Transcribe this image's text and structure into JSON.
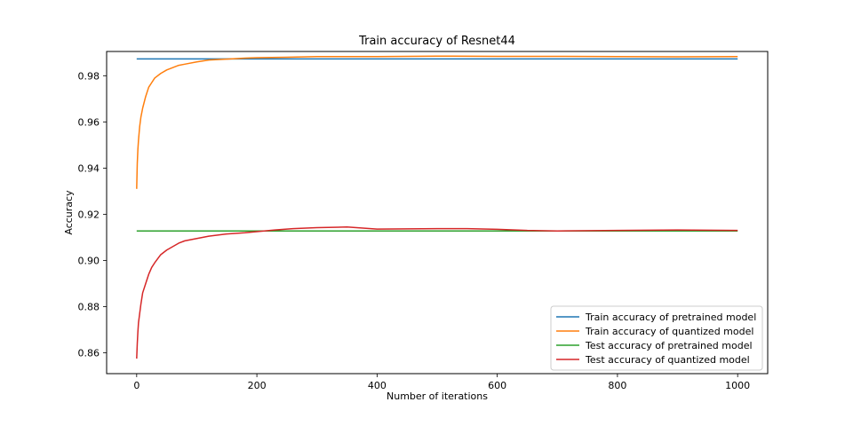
{
  "chart_data": {
    "type": "line",
    "title": "Train accuracy of Resnet44",
    "xlabel": "Number of iterations",
    "ylabel": "Accuracy",
    "xlim": [
      -50,
      1050
    ],
    "ylim": [
      0.851,
      0.9905
    ],
    "xticks": [
      0,
      200,
      400,
      600,
      800,
      1000
    ],
    "yticks": [
      0.86,
      0.88,
      0.9,
      0.92,
      0.94,
      0.96,
      0.98
    ],
    "grid": false,
    "legend_position": "lower right",
    "series": [
      {
        "name": "Train accuracy of pretrained model",
        "color": "#1f77b4",
        "x": [
          0,
          1000
        ],
        "y": [
          0.9873,
          0.9873
        ]
      },
      {
        "name": "Train accuracy of quantized model",
        "color": "#ff7f0e",
        "x": [
          0,
          1,
          2,
          3,
          5,
          7,
          10,
          15,
          20,
          25,
          30,
          40,
          50,
          60,
          70,
          80,
          100,
          120,
          150,
          180,
          200,
          250,
          300,
          400,
          500,
          600,
          700,
          800,
          900,
          1000
        ],
        "y": [
          0.931,
          0.942,
          0.948,
          0.952,
          0.958,
          0.962,
          0.966,
          0.971,
          0.975,
          0.977,
          0.979,
          0.981,
          0.9825,
          0.9835,
          0.9845,
          0.985,
          0.986,
          0.9868,
          0.9872,
          0.9876,
          0.9878,
          0.988,
          0.9883,
          0.9883,
          0.9885,
          0.9884,
          0.9884,
          0.9883,
          0.9882,
          0.9883
        ]
      },
      {
        "name": "Test accuracy of pretrained model",
        "color": "#2ca02c",
        "x": [
          0,
          1000
        ],
        "y": [
          0.9128,
          0.9128
        ]
      },
      {
        "name": "Test accuracy of quantized model",
        "color": "#d62728",
        "x": [
          0,
          1,
          2,
          3,
          5,
          7,
          10,
          15,
          20,
          25,
          30,
          40,
          50,
          60,
          70,
          80,
          100,
          120,
          150,
          180,
          200,
          230,
          260,
          300,
          350,
          400,
          450,
          500,
          550,
          600,
          650,
          700,
          800,
          900,
          1000
        ],
        "y": [
          0.8575,
          0.864,
          0.869,
          0.873,
          0.877,
          0.881,
          0.886,
          0.89,
          0.894,
          0.897,
          0.899,
          0.9025,
          0.9045,
          0.906,
          0.9075,
          0.9085,
          0.9095,
          0.9105,
          0.9115,
          0.912,
          0.9125,
          0.9132,
          0.9138,
          0.9142,
          0.9145,
          0.9136,
          0.9137,
          0.9138,
          0.9138,
          0.9135,
          0.913,
          0.9128,
          0.913,
          0.9132,
          0.913
        ]
      }
    ]
  }
}
